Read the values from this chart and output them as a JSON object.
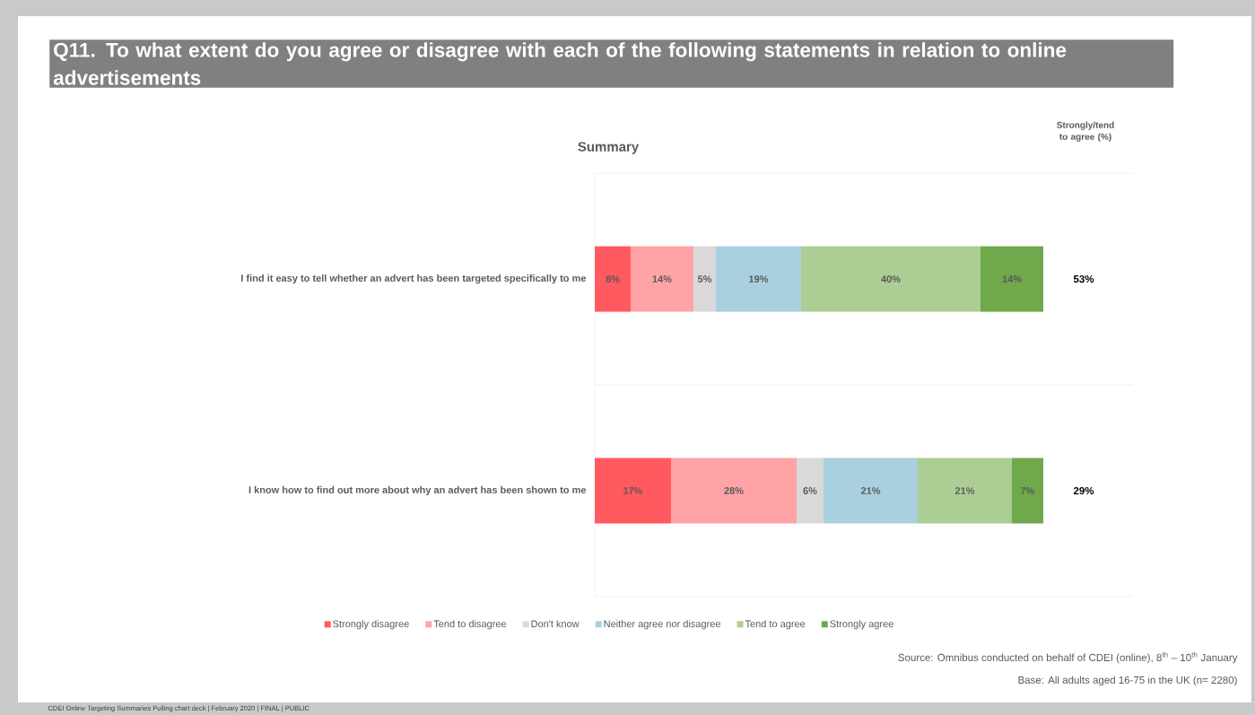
{
  "chart_data": {
    "type": "bar",
    "orientation": "horizontal",
    "stacked": true,
    "title": "Q11. To what extent do you agree or disagree with each of the following statements in relation to online advertisements",
    "subtitle": "Summary",
    "categories": [
      "I find it easy to tell whether an advert has been targeted specifically to me",
      "I know how to find out more about why an advert has been shown to me"
    ],
    "series": [
      {
        "name": "Strongly disagree",
        "color": "#ff5a5f",
        "values": [
          8,
          17
        ],
        "value_labels": [
          "8%",
          "17%"
        ]
      },
      {
        "name": "Tend to disagree",
        "color": "#ffa3a7",
        "values": [
          14,
          28
        ],
        "value_labels": [
          "14%",
          "28%"
        ]
      },
      {
        "name": "Don't know",
        "color": "#d9d9d9",
        "values": [
          5,
          6
        ],
        "value_labels": [
          "5%",
          "6%"
        ]
      },
      {
        "name": "Neither agree nor disagree",
        "color": "#a9d0df",
        "values": [
          19,
          21
        ],
        "value_labels": [
          "19%",
          "21%"
        ]
      },
      {
        "name": "Tend to agree",
        "color": "#acce94",
        "values": [
          40,
          21
        ],
        "value_labels": [
          "40%",
          "21%"
        ]
      },
      {
        "name": "Strongly agree",
        "color": "#70a84c",
        "values": [
          14,
          7
        ],
        "value_labels": [
          "14%",
          "7%"
        ]
      }
    ],
    "legend": "bottom",
    "grid": "y",
    "annotations": [
      "Strongly/tend to agree (%)",
      "53%",
      "29%",
      "Source: Omnibus conducted on behalf of CDEI (online), 8$^{th}$ – 10$^{th}$ January",
      "Base: All adults aged 16-75 in the UK (n= 2280)",
      "CDEI Online Targeting Summaries Polling chart deck | February 2020 | FINAL | PUBLIC"
    ]
  }
}
